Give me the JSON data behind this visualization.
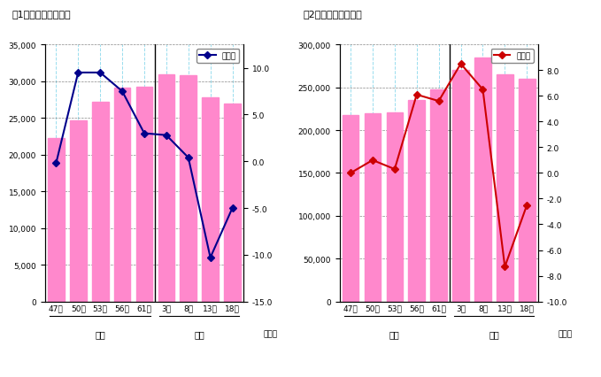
{
  "fig1": {
    "title": "図1　事業所数の推移",
    "categories": [
      "47年",
      "50年",
      "53年",
      "56年",
      "61年",
      "3年",
      "8年",
      "13年",
      "18年"
    ],
    "bar_values": [
      22300,
      24700,
      27200,
      29100,
      29300,
      30900,
      30800,
      27800,
      26900
    ],
    "rate_values": [
      -0.2,
      9.5,
      9.5,
      7.5,
      3.0,
      2.8,
      0.4,
      -10.3,
      -5.0
    ],
    "bar_color": "#FF88CC",
    "line_color": "#00008B",
    "xlabel_showa": "昭和",
    "xlabel_heisei": "平成",
    "ylabel_right": "増加率",
    "ylim_left": [
      0,
      35000
    ],
    "ylim_right": [
      -15.0,
      12.5
    ],
    "yticks_left": [
      0,
      5000,
      10000,
      15000,
      20000,
      25000,
      30000,
      35000
    ],
    "yticks_right": [
      -15.0,
      -10.0,
      -5.0,
      0.0,
      5.0,
      10.0
    ],
    "legend_label": "増加率"
  },
  "fig2": {
    "title": "図2　従業者数の推移",
    "categories": [
      "47年",
      "50年",
      "53年",
      "56年",
      "61年",
      "3年",
      "8年",
      "13年",
      "18年"
    ],
    "bar_values": [
      218000,
      220000,
      221000,
      235000,
      248000,
      270000,
      285000,
      265000,
      260000
    ],
    "rate_values": [
      0.0,
      1.0,
      0.3,
      6.1,
      5.6,
      8.5,
      6.5,
      -7.3,
      -2.5
    ],
    "bar_color": "#FF88CC",
    "line_color": "#CC0000",
    "xlabel_showa": "昭和",
    "xlabel_heisei": "平成",
    "ylabel_right": "増加率",
    "ylim_left": [
      0,
      300000
    ],
    "ylim_right": [
      -10.0,
      10.0
    ],
    "yticks_left": [
      0,
      50000,
      100000,
      150000,
      200000,
      250000,
      300000
    ],
    "yticks_right": [
      -10.0,
      -8.0,
      -6.0,
      -4.0,
      -2.0,
      0.0,
      2.0,
      4.0,
      6.0,
      8.0
    ],
    "legend_label": "増加率"
  }
}
